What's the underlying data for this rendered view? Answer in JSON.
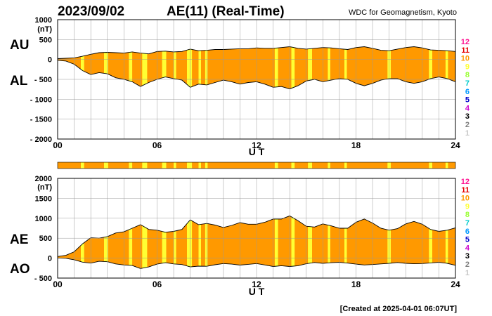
{
  "header": {
    "date": "2023/09/02",
    "title": "AE(11) (Real-Time)",
    "source": "WDC for Geomagnetism, Kyoto"
  },
  "footer": {
    "created": "[Created at 2025-04-01 06:07UT]"
  },
  "colors": {
    "fill": "#ff9900",
    "highlight": "#ffff33",
    "bar": "#ff9900",
    "trace": "#000000",
    "grid": "#999999"
  },
  "scale_numbers": [
    "12",
    "11",
    "10",
    "9",
    "8",
    "7",
    "6",
    "5",
    "4",
    "3",
    "2",
    "1"
  ],
  "scale_colors": [
    "#ff1493",
    "#e60000",
    "#ff9900",
    "#ffff33",
    "#99ff33",
    "#00cccc",
    "#0099ff",
    "#0000cc",
    "#cc00cc",
    "#000000",
    "#808080",
    "#c8c8c8"
  ],
  "chart_data": [
    {
      "type": "area",
      "series_labels": [
        "AU",
        "AL"
      ],
      "units_label": "(nT)",
      "xlabel": "U T",
      "xlim": [
        0,
        24
      ],
      "ylim": [
        -2000,
        1000
      ],
      "yticks": [
        1000,
        500,
        0,
        -500,
        -1000,
        -1500,
        -2000
      ],
      "ytick_labels": [
        "1000",
        "500",
        "0",
        "- 500",
        "- 1000",
        "- 1500",
        "- 2000"
      ],
      "xticks": [
        0,
        6,
        12,
        18,
        24
      ],
      "xtick_labels": [
        "00",
        "06",
        "12",
        "18",
        "24"
      ],
      "grid": true,
      "hours": [
        0,
        0.5,
        1,
        1.5,
        2,
        2.5,
        3,
        3.5,
        4,
        4.5,
        5,
        5.5,
        6,
        6.5,
        7,
        7.5,
        8,
        8.5,
        9,
        9.5,
        10,
        10.5,
        11,
        11.5,
        12,
        12.5,
        13,
        13.5,
        14,
        14.5,
        15,
        15.5,
        16,
        16.5,
        17,
        17.5,
        18,
        18.5,
        19,
        19.5,
        20,
        20.5,
        21,
        21.5,
        22,
        22.5,
        23,
        23.5,
        24
      ],
      "upper": [
        20,
        30,
        40,
        80,
        130,
        170,
        180,
        170,
        160,
        190,
        160,
        140,
        200,
        210,
        190,
        200,
        260,
        220,
        230,
        250,
        250,
        260,
        270,
        270,
        290,
        280,
        280,
        300,
        320,
        280,
        260,
        280,
        300,
        290,
        270,
        250,
        300,
        320,
        280,
        230,
        220,
        260,
        300,
        320,
        290,
        240,
        230,
        220,
        200
      ],
      "lower": [
        -20,
        -40,
        -120,
        -280,
        -380,
        -330,
        -360,
        -460,
        -500,
        -560,
        -680,
        -580,
        -500,
        -440,
        -480,
        -520,
        -700,
        -620,
        -640,
        -580,
        -520,
        -560,
        -620,
        -580,
        -560,
        -620,
        -700,
        -680,
        -740,
        -660,
        -540,
        -500,
        -560,
        -520,
        -480,
        -500,
        -600,
        -660,
        -600,
        -520,
        -480,
        -480,
        -560,
        -600,
        -560,
        -480,
        -440,
        -480,
        -560
      ]
    },
    {
      "type": "area",
      "series_labels": [
        "AE",
        "AO"
      ],
      "units_label": "(nT)",
      "xlabel": "U T",
      "xlim": [
        0,
        24
      ],
      "ylim": [
        -500,
        2000
      ],
      "yticks": [
        2000,
        1500,
        1000,
        500,
        0,
        -500
      ],
      "ytick_labels": [
        "2000",
        "1500",
        "1000",
        "500",
        "0",
        "- 500"
      ],
      "xticks": [
        0,
        6,
        12,
        18,
        24
      ],
      "xtick_labels": [
        "00",
        "06",
        "12",
        "18",
        "24"
      ],
      "grid": true,
      "hours": [
        0,
        0.5,
        1,
        1.5,
        2,
        2.5,
        3,
        3.5,
        4,
        4.5,
        5,
        5.5,
        6,
        6.5,
        7,
        7.5,
        8,
        8.5,
        9,
        9.5,
        10,
        10.5,
        11,
        11.5,
        12,
        12.5,
        13,
        13.5,
        14,
        14.5,
        15,
        15.5,
        16,
        16.5,
        17,
        17.5,
        18,
        18.5,
        19,
        19.5,
        20,
        20.5,
        21,
        21.5,
        22,
        22.5,
        23,
        23.5,
        24
      ],
      "upper": [
        40,
        70,
        160,
        360,
        510,
        500,
        540,
        630,
        660,
        750,
        840,
        720,
        700,
        650,
        670,
        720,
        960,
        840,
        870,
        830,
        770,
        820,
        890,
        850,
        850,
        900,
        980,
        980,
        1060,
        940,
        800,
        780,
        860,
        810,
        750,
        750,
        900,
        980,
        880,
        750,
        700,
        740,
        860,
        920,
        850,
        720,
        670,
        700,
        760
      ],
      "lower": [
        0,
        -5,
        -40,
        -100,
        -125,
        -80,
        -90,
        -145,
        -170,
        -185,
        -260,
        -220,
        -150,
        -115,
        -145,
        -160,
        -220,
        -200,
        -205,
        -165,
        -135,
        -150,
        -175,
        -155,
        -135,
        -170,
        -210,
        -190,
        -210,
        -190,
        -140,
        -110,
        -130,
        -115,
        -105,
        -125,
        -150,
        -170,
        -160,
        -145,
        -130,
        -110,
        -130,
        -140,
        -135,
        -120,
        -105,
        -130,
        -180
      ]
    }
  ],
  "highlight_bands": [
    [
      1.4,
      1.6
    ],
    [
      2.8,
      3.05
    ],
    [
      4.3,
      4.5
    ],
    [
      5.1,
      5.4
    ],
    [
      6.3,
      6.55
    ],
    [
      7.0,
      7.15
    ],
    [
      7.8,
      8.1
    ],
    [
      8.5,
      8.65
    ],
    [
      8.9,
      9.05
    ],
    [
      13.1,
      13.3
    ],
    [
      14.1,
      14.3
    ],
    [
      15.1,
      15.35
    ],
    [
      16.3,
      16.45
    ],
    [
      17.3,
      17.45
    ],
    [
      19.9,
      20.1
    ],
    [
      22.4,
      22.6
    ],
    [
      23.4,
      23.55
    ]
  ],
  "activity_bar": {
    "bands": [
      [
        1.4,
        1.6
      ],
      [
        2.8,
        3.05
      ],
      [
        4.3,
        4.5
      ],
      [
        5.1,
        5.4
      ],
      [
        6.3,
        6.55
      ],
      [
        7.0,
        7.15
      ],
      [
        7.8,
        8.1
      ],
      [
        8.5,
        8.65
      ],
      [
        8.9,
        9.05
      ],
      [
        13.1,
        13.3
      ],
      [
        14.1,
        14.3
      ],
      [
        15.1,
        15.35
      ],
      [
        16.3,
        16.45
      ],
      [
        17.3,
        17.45
      ],
      [
        19.9,
        20.1
      ],
      [
        22.4,
        22.6
      ],
      [
        23.4,
        23.55
      ]
    ]
  }
}
